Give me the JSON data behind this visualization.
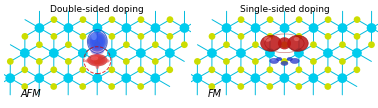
{
  "title_left": "Double-sided doping",
  "title_right": "Single-sided doping",
  "label_left": "AFM",
  "label_right": "FM",
  "bg_color": "#ffffff",
  "cyan_color": "#00CCEE",
  "yellow_color": "#CCDD00",
  "bond_color": "#00BBDD",
  "blue_spin_color": "#1133CC",
  "red_spin_color": "#BB1111",
  "title_fontsize": 6.5,
  "label_fontsize": 7.0,
  "figsize": [
    3.78,
    1.08
  ],
  "dpi": 100
}
